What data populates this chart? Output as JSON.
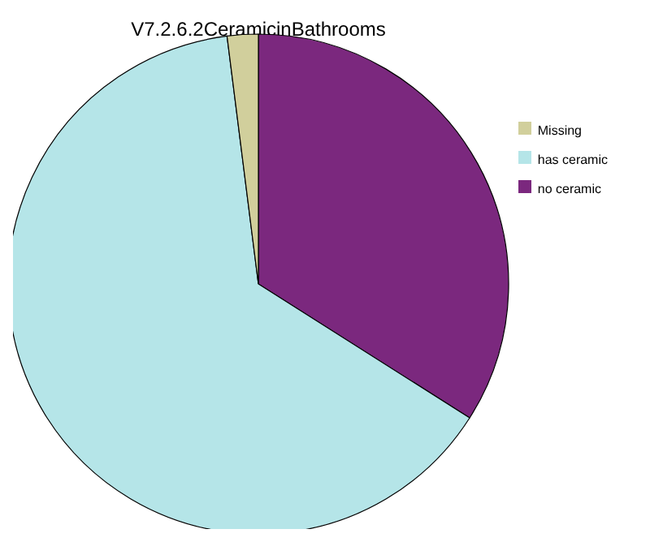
{
  "chart_data": {
    "type": "pie",
    "title": "V7.2.6.2CeramicinBathrooms",
    "categories": [
      "no ceramic",
      "has ceramic",
      "Missing"
    ],
    "values": [
      34,
      64,
      2
    ],
    "colors": [
      "#7b287e",
      "#b5e5e8",
      "#d1cf9c"
    ],
    "legend": "right"
  }
}
